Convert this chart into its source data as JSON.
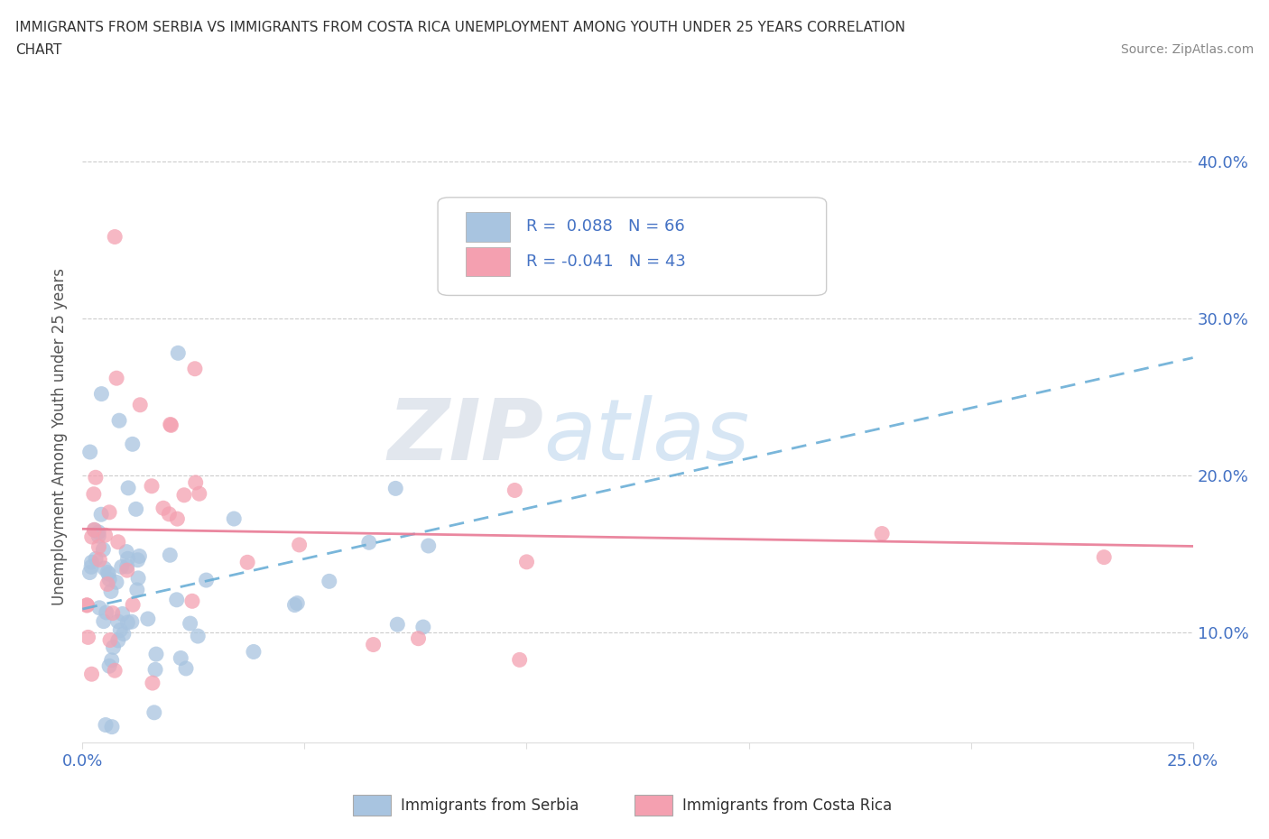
{
  "title_line1": "IMMIGRANTS FROM SERBIA VS IMMIGRANTS FROM COSTA RICA UNEMPLOYMENT AMONG YOUTH UNDER 25 YEARS CORRELATION",
  "title_line2": "CHART",
  "source_text": "Source: ZipAtlas.com",
  "ylabel": "Unemployment Among Youth under 25 years",
  "xlim": [
    0.0,
    0.25
  ],
  "ylim": [
    0.03,
    0.42
  ],
  "xtick_positions": [
    0.0,
    0.05,
    0.1,
    0.15,
    0.2,
    0.25
  ],
  "ytick_positions": [
    0.1,
    0.2,
    0.3,
    0.4
  ],
  "ytick_labels_right": [
    "10.0%",
    "20.0%",
    "30.0%",
    "40.0%"
  ],
  "serbia_color": "#a8c4e0",
  "costa_rica_color": "#f4a0b0",
  "serbia_trend_color": "#6aaed6",
  "costa_rica_trend_color": "#e87a95",
  "R_serbia": 0.088,
  "N_serbia": 66,
  "R_costa_rica": -0.041,
  "N_costa_rica": 43,
  "legend_label_serbia": "Immigrants from Serbia",
  "legend_label_costa_rica": "Immigrants from Costa Rica",
  "watermark_zip": "ZIP",
  "watermark_atlas": "atlas",
  "background_color": "#ffffff"
}
